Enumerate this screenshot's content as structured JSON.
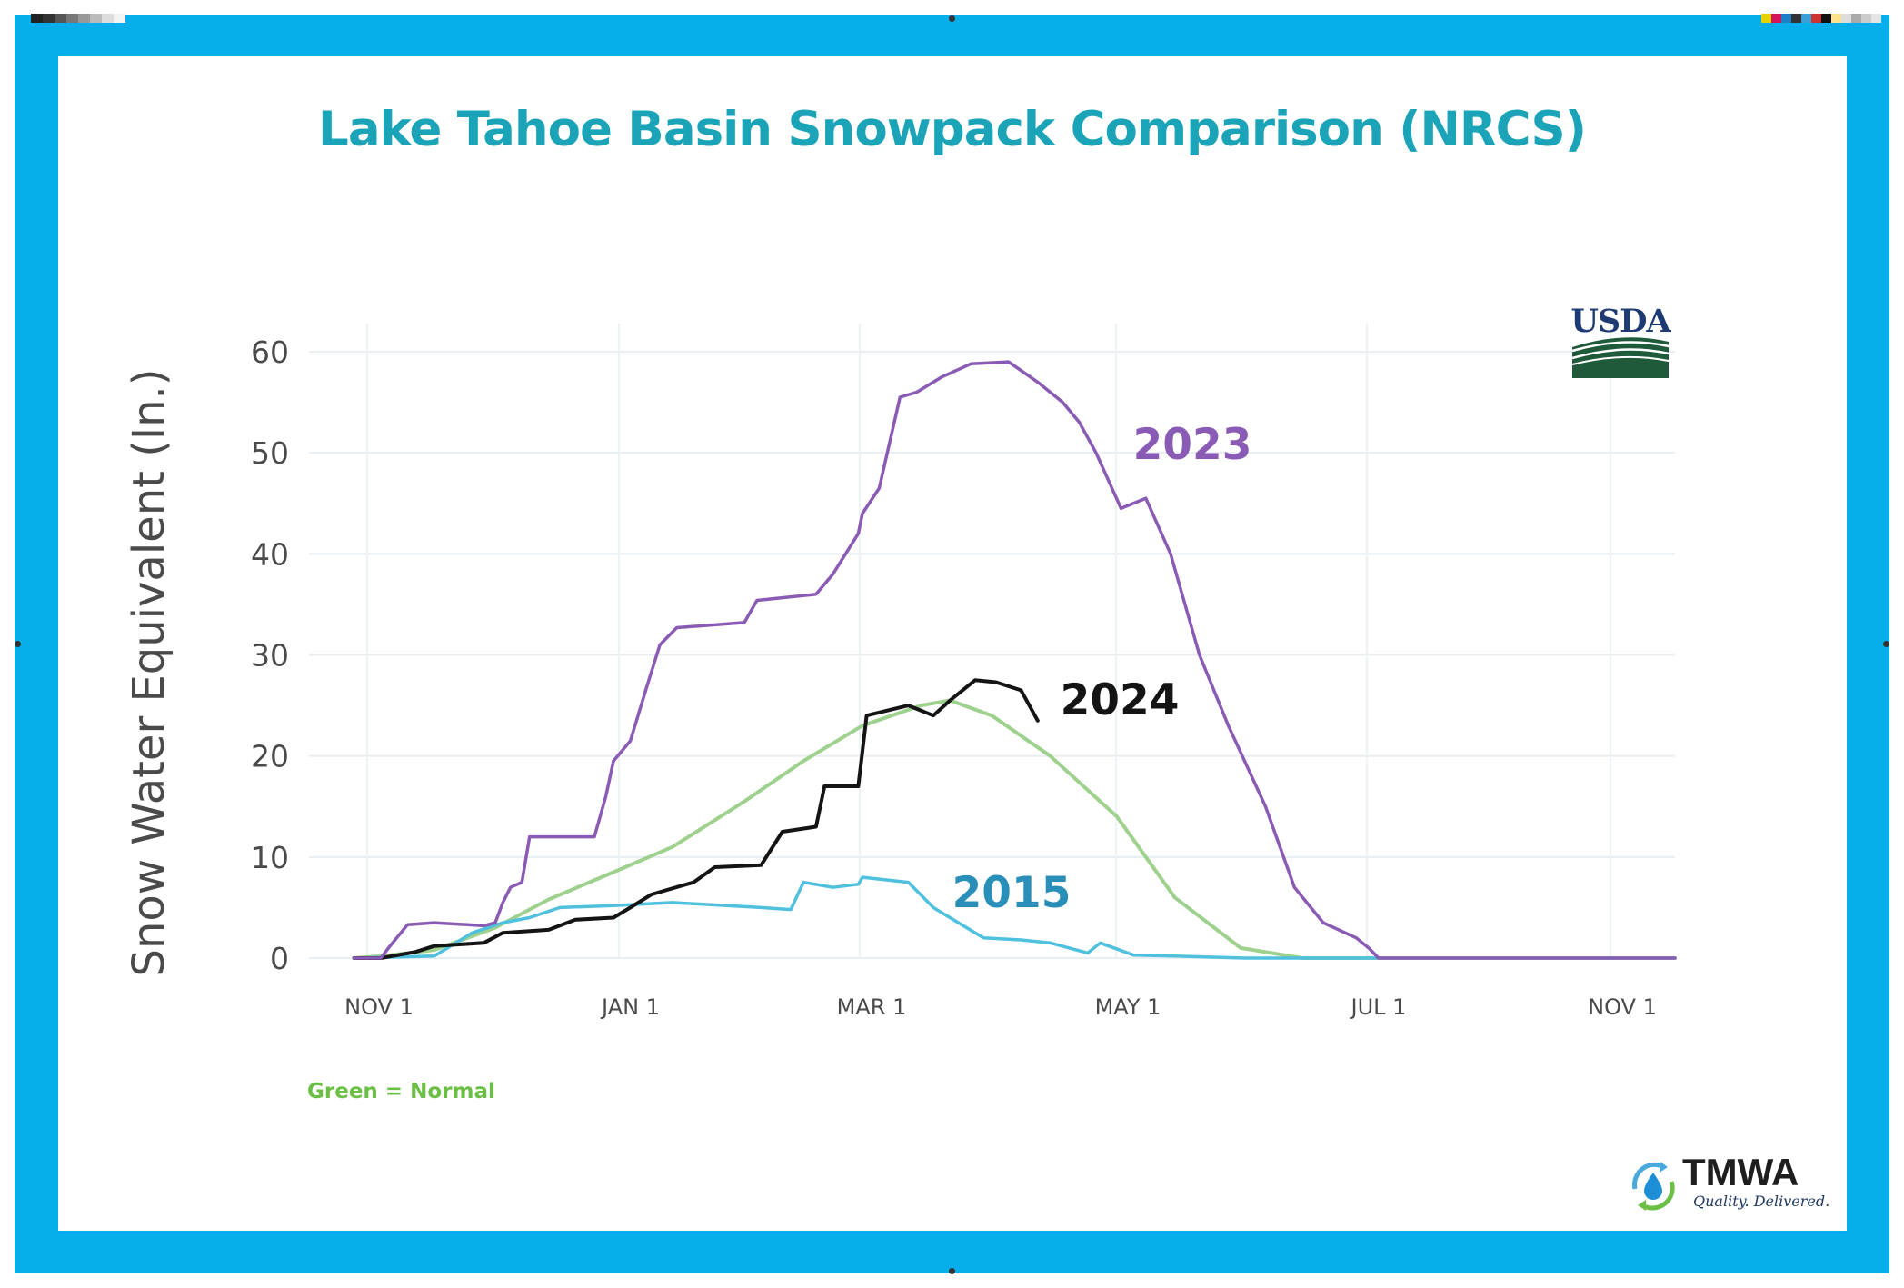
{
  "title": "Lake Tahoe Basin Snowpack Comparison (NRCS)",
  "note": "Green = Normal",
  "logos": {
    "usda": "USDA",
    "tmwa": "TMWA",
    "tmwa_tagline": "Quality. Delivered."
  },
  "colors": {
    "frame": "#06aeea",
    "title": "#1ba4b8",
    "y2023": "#8a5bb4",
    "y2024": "#141414",
    "y2015": "#4fc0de",
    "normal": "#9fd18e",
    "note": "#6cbf45"
  },
  "chart_data": {
    "type": "line",
    "title": "Lake Tahoe Basin Snowpack Comparison (NRCS)",
    "xlabel": "",
    "ylabel": "Snow Water Equivalent (In.)",
    "x_unit": "date (water year, Oct 1 start)",
    "x_ticks": [
      "NOV 1",
      "JAN 1",
      "MAR 1",
      "MAY 1",
      "JUL 1",
      "NOV 1"
    ],
    "y_ticks": [
      "0",
      "10",
      "20",
      "30",
      "40",
      "50",
      "60"
    ],
    "ylim": [
      0,
      62
    ],
    "grid": true,
    "series": [
      {
        "name": "2023",
        "color": "#8a5bb4",
        "points": [
          [
            "Oct 25",
            0
          ],
          [
            "Nov 1",
            0
          ],
          [
            "Nov 3",
            1
          ],
          [
            "Nov 8",
            3.3
          ],
          [
            "Nov 15",
            3.5
          ],
          [
            "Nov 28",
            3.2
          ],
          [
            "Dec 1",
            3.5
          ],
          [
            "Dec 3",
            5.5
          ],
          [
            "Dec 5",
            7
          ],
          [
            "Dec 8",
            7.5
          ],
          [
            "Dec 10",
            12
          ],
          [
            "Dec 27",
            12
          ],
          [
            "Dec 30",
            16
          ],
          [
            "Jan 1",
            19.5
          ],
          [
            "Jan 5",
            21.5
          ],
          [
            "Jan 9",
            27
          ],
          [
            "Jan 12",
            31
          ],
          [
            "Jan 16",
            32.7
          ],
          [
            "Feb 1",
            33.2
          ],
          [
            "Feb 4",
            35.4
          ],
          [
            "Feb 18",
            36
          ],
          [
            "Feb 22",
            38
          ],
          [
            "Feb 28",
            42
          ],
          [
            "Mar 1",
            44
          ],
          [
            "Mar 5",
            46.5
          ],
          [
            "Mar 10",
            55.5
          ],
          [
            "Mar 14",
            56
          ],
          [
            "Mar 20",
            57.5
          ],
          [
            "Mar 27",
            58.8
          ],
          [
            "Apr 5",
            59
          ],
          [
            "Apr 12",
            57
          ],
          [
            "Apr 18",
            55
          ],
          [
            "Apr 22",
            53
          ],
          [
            "Apr 26",
            50
          ],
          [
            "May 2",
            44.5
          ],
          [
            "May 8",
            45.5
          ],
          [
            "May 14",
            40
          ],
          [
            "May 21",
            30
          ],
          [
            "May 28",
            23
          ],
          [
            "Jun 6",
            15
          ],
          [
            "Jun 13",
            7
          ],
          [
            "Jun 20",
            3.5
          ],
          [
            "Jun 28",
            2
          ],
          [
            "Jul 1",
            1
          ],
          [
            "Jul 6",
            0
          ],
          [
            "Nov 15",
            0
          ]
        ]
      },
      {
        "name": "2024",
        "color": "#141414",
        "points": [
          [
            "Oct 25",
            0
          ],
          [
            "Nov 1",
            0
          ],
          [
            "Nov 10",
            0.6
          ],
          [
            "Nov 15",
            1.2
          ],
          [
            "Nov 28",
            1.5
          ],
          [
            "Dec 3",
            2.5
          ],
          [
            "Dec 15",
            2.8
          ],
          [
            "Dec 22",
            3.8
          ],
          [
            "Jan 1",
            4
          ],
          [
            "Jan 5",
            5
          ],
          [
            "Jan 10",
            6.3
          ],
          [
            "Jan 20",
            7.5
          ],
          [
            "Jan 25",
            9
          ],
          [
            "Feb 5",
            9.2
          ],
          [
            "Feb 10",
            12.5
          ],
          [
            "Feb 18",
            13
          ],
          [
            "Feb 20",
            17
          ],
          [
            "Feb 28",
            17
          ],
          [
            "Mar 2",
            24
          ],
          [
            "Mar 12",
            25
          ],
          [
            "Mar 18",
            24
          ],
          [
            "Mar 22",
            25.5
          ],
          [
            "Mar 28",
            27.5
          ],
          [
            "Apr 2",
            27.3
          ],
          [
            "Apr 8",
            26.5
          ],
          [
            "Apr 12",
            23.5
          ]
        ]
      },
      {
        "name": "2015",
        "color": "#4fc0de",
        "points": [
          [
            "Oct 25",
            0
          ],
          [
            "Nov 15",
            0.2
          ],
          [
            "Nov 25",
            2.5
          ],
          [
            "Dec 3",
            3.5
          ],
          [
            "Dec 10",
            4
          ],
          [
            "Dec 18",
            5
          ],
          [
            "Jan 1",
            5.2
          ],
          [
            "Jan 15",
            5.5
          ],
          [
            "Feb 5",
            5
          ],
          [
            "Feb 12",
            4.8
          ],
          [
            "Feb 15",
            7.5
          ],
          [
            "Feb 22",
            7
          ],
          [
            "Feb 28",
            7.3
          ],
          [
            "Mar 1",
            8
          ],
          [
            "Mar 12",
            7.5
          ],
          [
            "Mar 18",
            5
          ],
          [
            "Mar 24",
            3.5
          ],
          [
            "Mar 30",
            2
          ],
          [
            "Apr 8",
            1.8
          ],
          [
            "Apr 15",
            1.5
          ],
          [
            "Apr 24",
            0.5
          ],
          [
            "Apr 27",
            1.5
          ],
          [
            "May 5",
            0.3
          ],
          [
            "May 15",
            0.2
          ],
          [
            "Jun 1",
            0
          ],
          [
            "Nov 15",
            0
          ]
        ]
      },
      {
        "name": "Normal",
        "color": "#9fd18e",
        "points": [
          [
            "Oct 25",
            0
          ],
          [
            "Nov 1",
            0.2
          ],
          [
            "Nov 15",
            0.8
          ],
          [
            "Dec 1",
            3
          ],
          [
            "Dec 15",
            5.8
          ],
          [
            "Jan 1",
            8.5
          ],
          [
            "Jan 15",
            11
          ],
          [
            "Feb 1",
            15.5
          ],
          [
            "Feb 15",
            19.5
          ],
          [
            "Mar 1",
            23
          ],
          [
            "Mar 15",
            25
          ],
          [
            "Mar 22",
            25.5
          ],
          [
            "Apr 1",
            24
          ],
          [
            "Apr 15",
            20
          ],
          [
            "May 1",
            14
          ],
          [
            "May 15",
            6
          ],
          [
            "May 31",
            1
          ],
          [
            "Jun 15",
            0
          ],
          [
            "Nov 15",
            0
          ]
        ]
      }
    ]
  }
}
